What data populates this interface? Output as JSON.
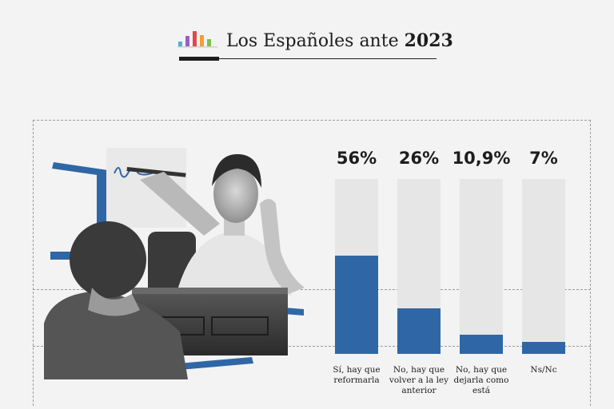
{
  "header": {
    "title_main": "Los Españoles ante ",
    "title_year": "2023",
    "logo_icon": "bar-chart-logo-icon",
    "logo_colors": [
      "#4fb0d4",
      "#9b5fc0",
      "#e0484b",
      "#f0a030",
      "#7cc04a"
    ]
  },
  "colors": {
    "bar_fill": "#2f67a6",
    "bar_track": "#e6e6e6",
    "background": "#f3f3f3"
  },
  "chart_data": {
    "type": "bar",
    "categories": [
      "Sí, hay que reformarla",
      "No, hay que volver a la ley anterior",
      "No, hay que dejarla como está",
      "Ns/Nc"
    ],
    "values": [
      56,
      26,
      10.9,
      7
    ],
    "value_labels": [
      "56%",
      "26%",
      "10,9%",
      "7%"
    ],
    "ylim": [
      0,
      100
    ],
    "grid": false
  }
}
